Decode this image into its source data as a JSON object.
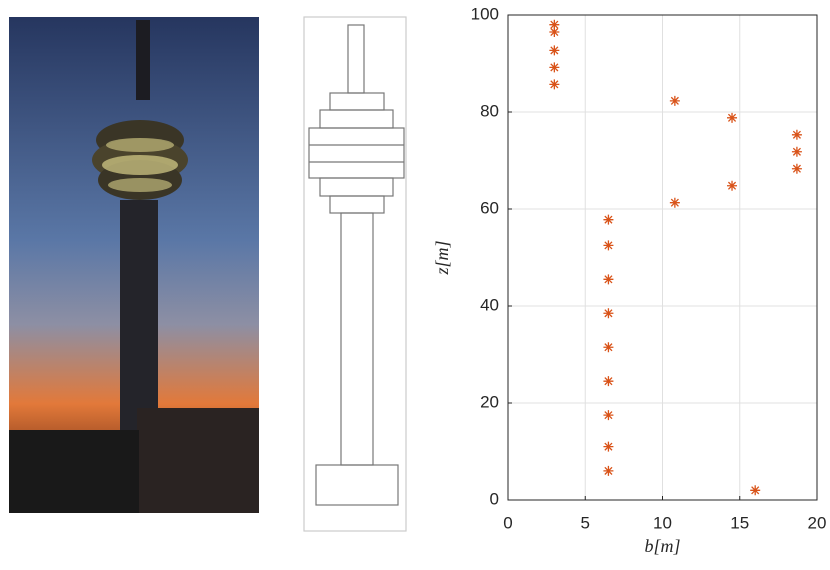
{
  "chart_data": {
    "type": "scatter",
    "xlabel": "b[m]",
    "ylabel": "z[m]",
    "series": [
      {
        "color": "#d95319",
        "x": [
          3,
          3,
          3,
          3,
          3,
          10.8,
          14.5,
          18.7,
          18.7,
          18.7,
          14.5,
          10.8,
          6.5,
          6.5,
          6.5,
          6.5,
          6.5,
          6.5,
          6.5,
          6.5,
          6.5,
          16
        ],
        "values": [
          98,
          96.5,
          92.7,
          89.2,
          85.7,
          82.3,
          78.8,
          75.3,
          71.8,
          68.3,
          64.8,
          61.3,
          57.8,
          52.5,
          45.5,
          38.5,
          31.5,
          24.5,
          17.5,
          11,
          6,
          2
        ]
      }
    ],
    "xlim": [
      0,
      20
    ],
    "xticks": [
      0,
      5,
      10,
      15,
      20
    ],
    "ylim": [
      0,
      100
    ],
    "yticks": [
      0,
      20,
      40,
      60,
      80,
      100
    ],
    "grid": true
  }
}
